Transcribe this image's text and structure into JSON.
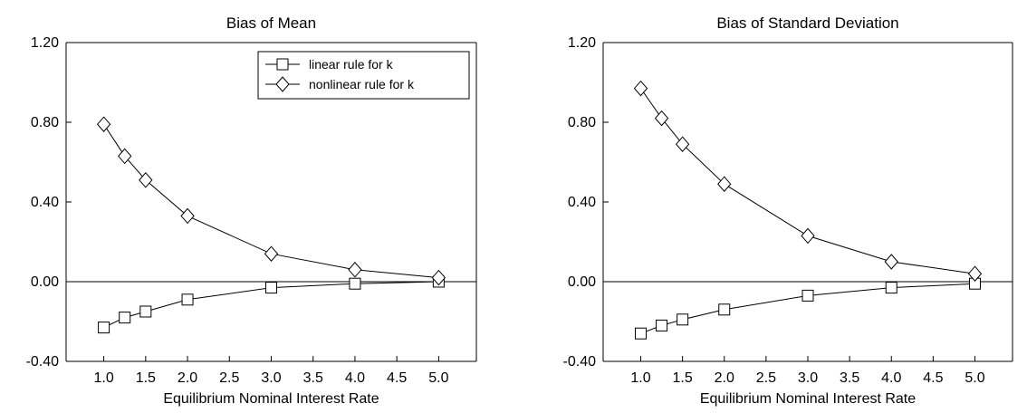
{
  "chart_data": [
    {
      "type": "line",
      "title": "Bias of Mean",
      "xlabel": "Equilibrium Nominal Interest Rate",
      "ylabel": "",
      "xlim": [
        0.55,
        5.45
      ],
      "ylim": [
        -0.4,
        1.2
      ],
      "xticks": [
        "1.0",
        "1.5",
        "2.0",
        "2.5",
        "3.0",
        "3.5",
        "4.0",
        "4.5",
        "5.0"
      ],
      "yticks": [
        "-0.40",
        "0.00",
        "0.40",
        "0.80",
        "1.20"
      ],
      "grid": false,
      "zero_line": true,
      "legend": "top-right",
      "x": [
        1.0,
        1.25,
        1.5,
        2.0,
        3.0,
        4.0,
        5.0
      ],
      "series": [
        {
          "name": "linear rule for k",
          "marker": "square",
          "values": [
            -0.23,
            -0.18,
            -0.15,
            -0.09,
            -0.03,
            -0.01,
            0.0
          ]
        },
        {
          "name": "nonlinear rule for k",
          "marker": "diamond",
          "values": [
            0.79,
            0.63,
            0.51,
            0.33,
            0.14,
            0.06,
            0.02
          ]
        }
      ]
    },
    {
      "type": "line",
      "title": "Bias of Standard Deviation",
      "xlabel": "Equilibrium Nominal Interest Rate",
      "ylabel": "",
      "xlim": [
        0.55,
        5.45
      ],
      "ylim": [
        -0.4,
        1.2
      ],
      "xticks": [
        "1.0",
        "1.5",
        "2.0",
        "2.5",
        "3.0",
        "3.5",
        "4.0",
        "4.5",
        "5.0"
      ],
      "yticks": [
        "-0.40",
        "0.00",
        "0.40",
        "0.80",
        "1.20"
      ],
      "grid": false,
      "zero_line": true,
      "x": [
        1.0,
        1.25,
        1.5,
        2.0,
        3.0,
        4.0,
        5.0
      ],
      "series": [
        {
          "marker": "square",
          "values": [
            -0.26,
            -0.22,
            -0.19,
            -0.14,
            -0.07,
            -0.03,
            -0.01
          ]
        },
        {
          "marker": "diamond",
          "values": [
            0.97,
            0.82,
            0.69,
            0.49,
            0.23,
            0.1,
            0.04
          ]
        }
      ]
    }
  ]
}
